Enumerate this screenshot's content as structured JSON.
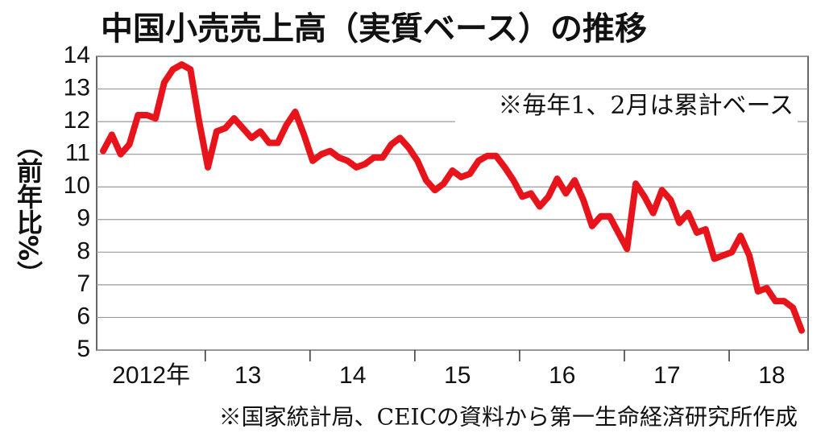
{
  "chart_data": {
    "type": "line",
    "title": "中国小売売上高（実質ベース）の推移",
    "y_label": "（前年比%）",
    "annotation": "※毎年1、2月は累計ベース",
    "source": "※国家統計局、CEICの資料から第一生命経済研究所作成",
    "categories": [
      "2012年",
      null,
      null,
      null,
      null,
      null,
      null,
      null,
      null,
      null,
      null,
      null,
      "13",
      null,
      null,
      null,
      null,
      null,
      null,
      null,
      null,
      null,
      null,
      null,
      "14",
      null,
      null,
      null,
      null,
      null,
      null,
      null,
      null,
      null,
      null,
      null,
      "15",
      null,
      null,
      null,
      null,
      null,
      null,
      null,
      null,
      null,
      null,
      null,
      "16",
      null,
      null,
      null,
      null,
      null,
      null,
      null,
      null,
      null,
      null,
      null,
      "17",
      null,
      null,
      null,
      null,
      null,
      null,
      null,
      null,
      null,
      null,
      null,
      "18",
      null,
      null,
      null,
      null,
      null,
      null,
      null,
      null
    ],
    "series": [
      {
        "color": "#e8141b",
        "values": [
          11.1,
          11.6,
          11.0,
          11.3,
          12.2,
          12.2,
          12.1,
          13.2,
          13.6,
          13.75,
          13.6,
          12.0,
          10.6,
          11.7,
          11.8,
          12.1,
          11.8,
          11.5,
          11.7,
          11.35,
          11.35,
          11.9,
          12.3,
          11.6,
          10.8,
          11.0,
          11.1,
          10.9,
          10.8,
          10.6,
          10.7,
          10.9,
          10.9,
          11.3,
          11.5,
          11.2,
          10.8,
          10.2,
          9.9,
          10.1,
          10.5,
          10.3,
          10.4,
          10.8,
          10.95,
          10.95,
          10.6,
          10.2,
          9.7,
          9.8,
          9.4,
          9.7,
          10.25,
          9.8,
          10.2,
          9.6,
          8.8,
          9.1,
          9.1,
          8.6,
          8.1,
          10.1,
          9.7,
          9.2,
          9.9,
          9.6,
          8.9,
          9.2,
          8.6,
          8.7,
          7.8,
          7.9,
          8.0,
          8.5,
          7.9,
          6.8,
          6.9,
          6.5,
          6.5,
          6.3,
          5.6
        ]
      }
    ],
    "ylim": [
      5,
      14
    ],
    "yticks": [
      5,
      6,
      7,
      8,
      9,
      10,
      11,
      12,
      13,
      14
    ],
    "grid": true
  }
}
